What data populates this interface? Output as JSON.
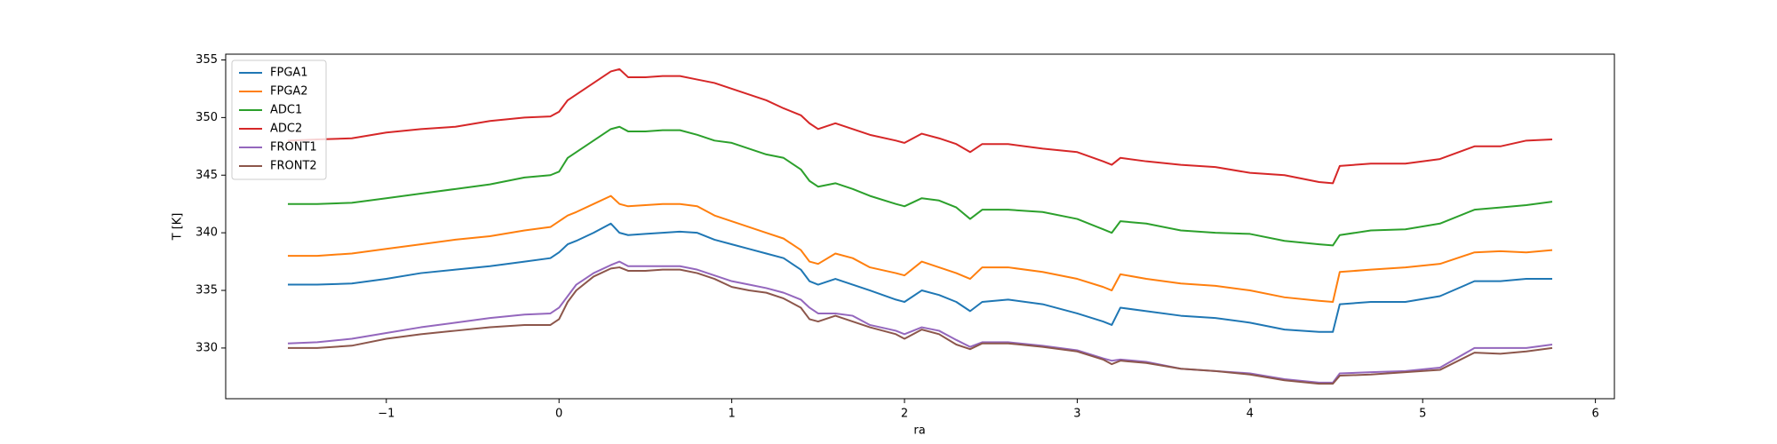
{
  "chart_data": {
    "type": "line",
    "x_label": "ra",
    "y_label": "T [K]",
    "x": [
      -1.57,
      -1.4,
      -1.2,
      -1.0,
      -0.8,
      -0.6,
      -0.4,
      -0.2,
      -0.05,
      0.0,
      0.05,
      0.1,
      0.2,
      0.3,
      0.35,
      0.4,
      0.5,
      0.6,
      0.7,
      0.8,
      0.9,
      1.0,
      1.1,
      1.2,
      1.3,
      1.4,
      1.45,
      1.5,
      1.6,
      1.7,
      1.8,
      1.95,
      2.0,
      2.1,
      2.2,
      2.3,
      2.38,
      2.45,
      2.6,
      2.8,
      3.0,
      3.15,
      3.2,
      3.25,
      3.4,
      3.6,
      3.8,
      4.0,
      4.2,
      4.4,
      4.48,
      4.52,
      4.7,
      4.9,
      5.1,
      5.3,
      5.45,
      5.6,
      5.75
    ],
    "series": [
      {
        "name": "FPGA1",
        "color": "#1f77b4",
        "values": [
          335.5,
          335.5,
          335.6,
          336,
          336.5,
          336.8,
          337.1,
          337.5,
          337.8,
          338.3,
          339,
          339.3,
          340,
          340.8,
          340,
          339.8,
          339.9,
          340,
          340.1,
          340,
          339.4,
          339,
          338.6,
          338.2,
          337.8,
          336.8,
          335.8,
          335.5,
          336,
          335.5,
          335,
          334.2,
          334,
          335,
          334.6,
          334,
          333.2,
          334,
          334.2,
          333.8,
          333,
          332.3,
          332,
          333.5,
          333.2,
          332.8,
          332.6,
          332.2,
          331.6,
          331.4,
          331.4,
          333.8,
          334,
          334,
          334.5,
          335.8,
          335.8,
          336,
          336
        ]
      },
      {
        "name": "FPGA2",
        "color": "#ff7f0e",
        "values": [
          338,
          338,
          338.2,
          338.6,
          339,
          339.4,
          339.7,
          340.2,
          340.5,
          341,
          341.5,
          341.8,
          342.5,
          343.2,
          342.5,
          342.3,
          342.4,
          342.5,
          342.5,
          342.3,
          341.5,
          341,
          340.5,
          340,
          339.5,
          338.5,
          337.5,
          337.3,
          338.2,
          337.8,
          337,
          336.5,
          336.3,
          337.5,
          337,
          336.5,
          336,
          337,
          337,
          336.6,
          336,
          335.3,
          335,
          336.4,
          336,
          335.6,
          335.4,
          335,
          334.4,
          334.1,
          334,
          336.6,
          336.8,
          337,
          337.3,
          338.3,
          338.4,
          338.3,
          338.5
        ]
      },
      {
        "name": "ADC1",
        "color": "#2ca02c",
        "values": [
          342.5,
          342.5,
          342.6,
          343,
          343.4,
          343.8,
          344.2,
          344.8,
          345,
          345.3,
          346.5,
          347,
          348,
          349,
          349.2,
          348.8,
          348.8,
          348.9,
          348.9,
          348.5,
          348,
          347.8,
          347.3,
          346.8,
          346.5,
          345.5,
          344.5,
          344,
          344.3,
          343.8,
          343.2,
          342.5,
          342.3,
          343,
          342.8,
          342.2,
          341.2,
          342,
          342,
          341.8,
          341.2,
          340.3,
          340,
          341,
          340.8,
          340.2,
          340,
          339.9,
          339.3,
          339,
          338.9,
          339.8,
          340.2,
          340.3,
          340.8,
          342,
          342.2,
          342.4,
          342.7
        ]
      },
      {
        "name": "ADC2",
        "color": "#d62728",
        "values": [
          348,
          348.1,
          348.2,
          348.7,
          349,
          349.2,
          349.7,
          350,
          350.1,
          350.5,
          351.5,
          352,
          353,
          354,
          354.2,
          353.5,
          353.5,
          353.6,
          353.6,
          353.3,
          353,
          352.5,
          352,
          351.5,
          350.8,
          350.2,
          349.5,
          349,
          349.5,
          349,
          348.5,
          348,
          347.8,
          348.6,
          348.2,
          347.7,
          347,
          347.7,
          347.7,
          347.3,
          347,
          346.2,
          345.9,
          346.5,
          346.2,
          345.9,
          345.7,
          345.2,
          345,
          344.4,
          344.3,
          345.8,
          346,
          346,
          346.4,
          347.5,
          347.5,
          348,
          348.1
        ]
      },
      {
        "name": "FRONT1",
        "color": "#9467bd",
        "values": [
          330.4,
          330.5,
          330.8,
          331.3,
          331.8,
          332.2,
          332.6,
          332.9,
          333,
          333.5,
          334.5,
          335.5,
          336.5,
          337.2,
          337.5,
          337.1,
          337.1,
          337.1,
          337.1,
          336.8,
          336.3,
          335.8,
          335.5,
          335.2,
          334.8,
          334.2,
          333.5,
          333,
          333,
          332.8,
          332,
          331.5,
          331.2,
          331.8,
          331.5,
          330.7,
          330.1,
          330.5,
          330.5,
          330.2,
          329.8,
          329.1,
          328.9,
          329,
          328.8,
          328.2,
          328,
          327.8,
          327.3,
          327,
          327,
          327.8,
          327.9,
          328,
          328.3,
          330,
          330,
          330,
          330.3
        ]
      },
      {
        "name": "FRONT2",
        "color": "#8c564b",
        "values": [
          330,
          330,
          330.2,
          330.8,
          331.2,
          331.5,
          331.8,
          332,
          332,
          332.5,
          334,
          335,
          336.2,
          336.9,
          337,
          336.7,
          336.7,
          336.8,
          336.8,
          336.5,
          336,
          335.3,
          335,
          334.8,
          334.3,
          333.5,
          332.5,
          332.3,
          332.8,
          332.3,
          331.8,
          331.2,
          330.8,
          331.6,
          331.2,
          330.3,
          329.9,
          330.4,
          330.4,
          330.1,
          329.7,
          329,
          328.6,
          328.9,
          328.7,
          328.2,
          328,
          327.7,
          327.2,
          326.9,
          326.9,
          327.6,
          327.7,
          327.9,
          328.1,
          329.6,
          329.5,
          329.7,
          330
        ]
      }
    ],
    "xlim": [
      -1.93,
      6.11
    ],
    "ylim": [
      325.6,
      355.5
    ],
    "xticks": [
      {
        "value": -1,
        "label": "−1"
      },
      0,
      1,
      2,
      3,
      4,
      5,
      6
    ],
    "yticks": [
      330,
      335,
      340,
      345,
      350,
      355
    ],
    "grid": false,
    "legend": "upper left"
  }
}
